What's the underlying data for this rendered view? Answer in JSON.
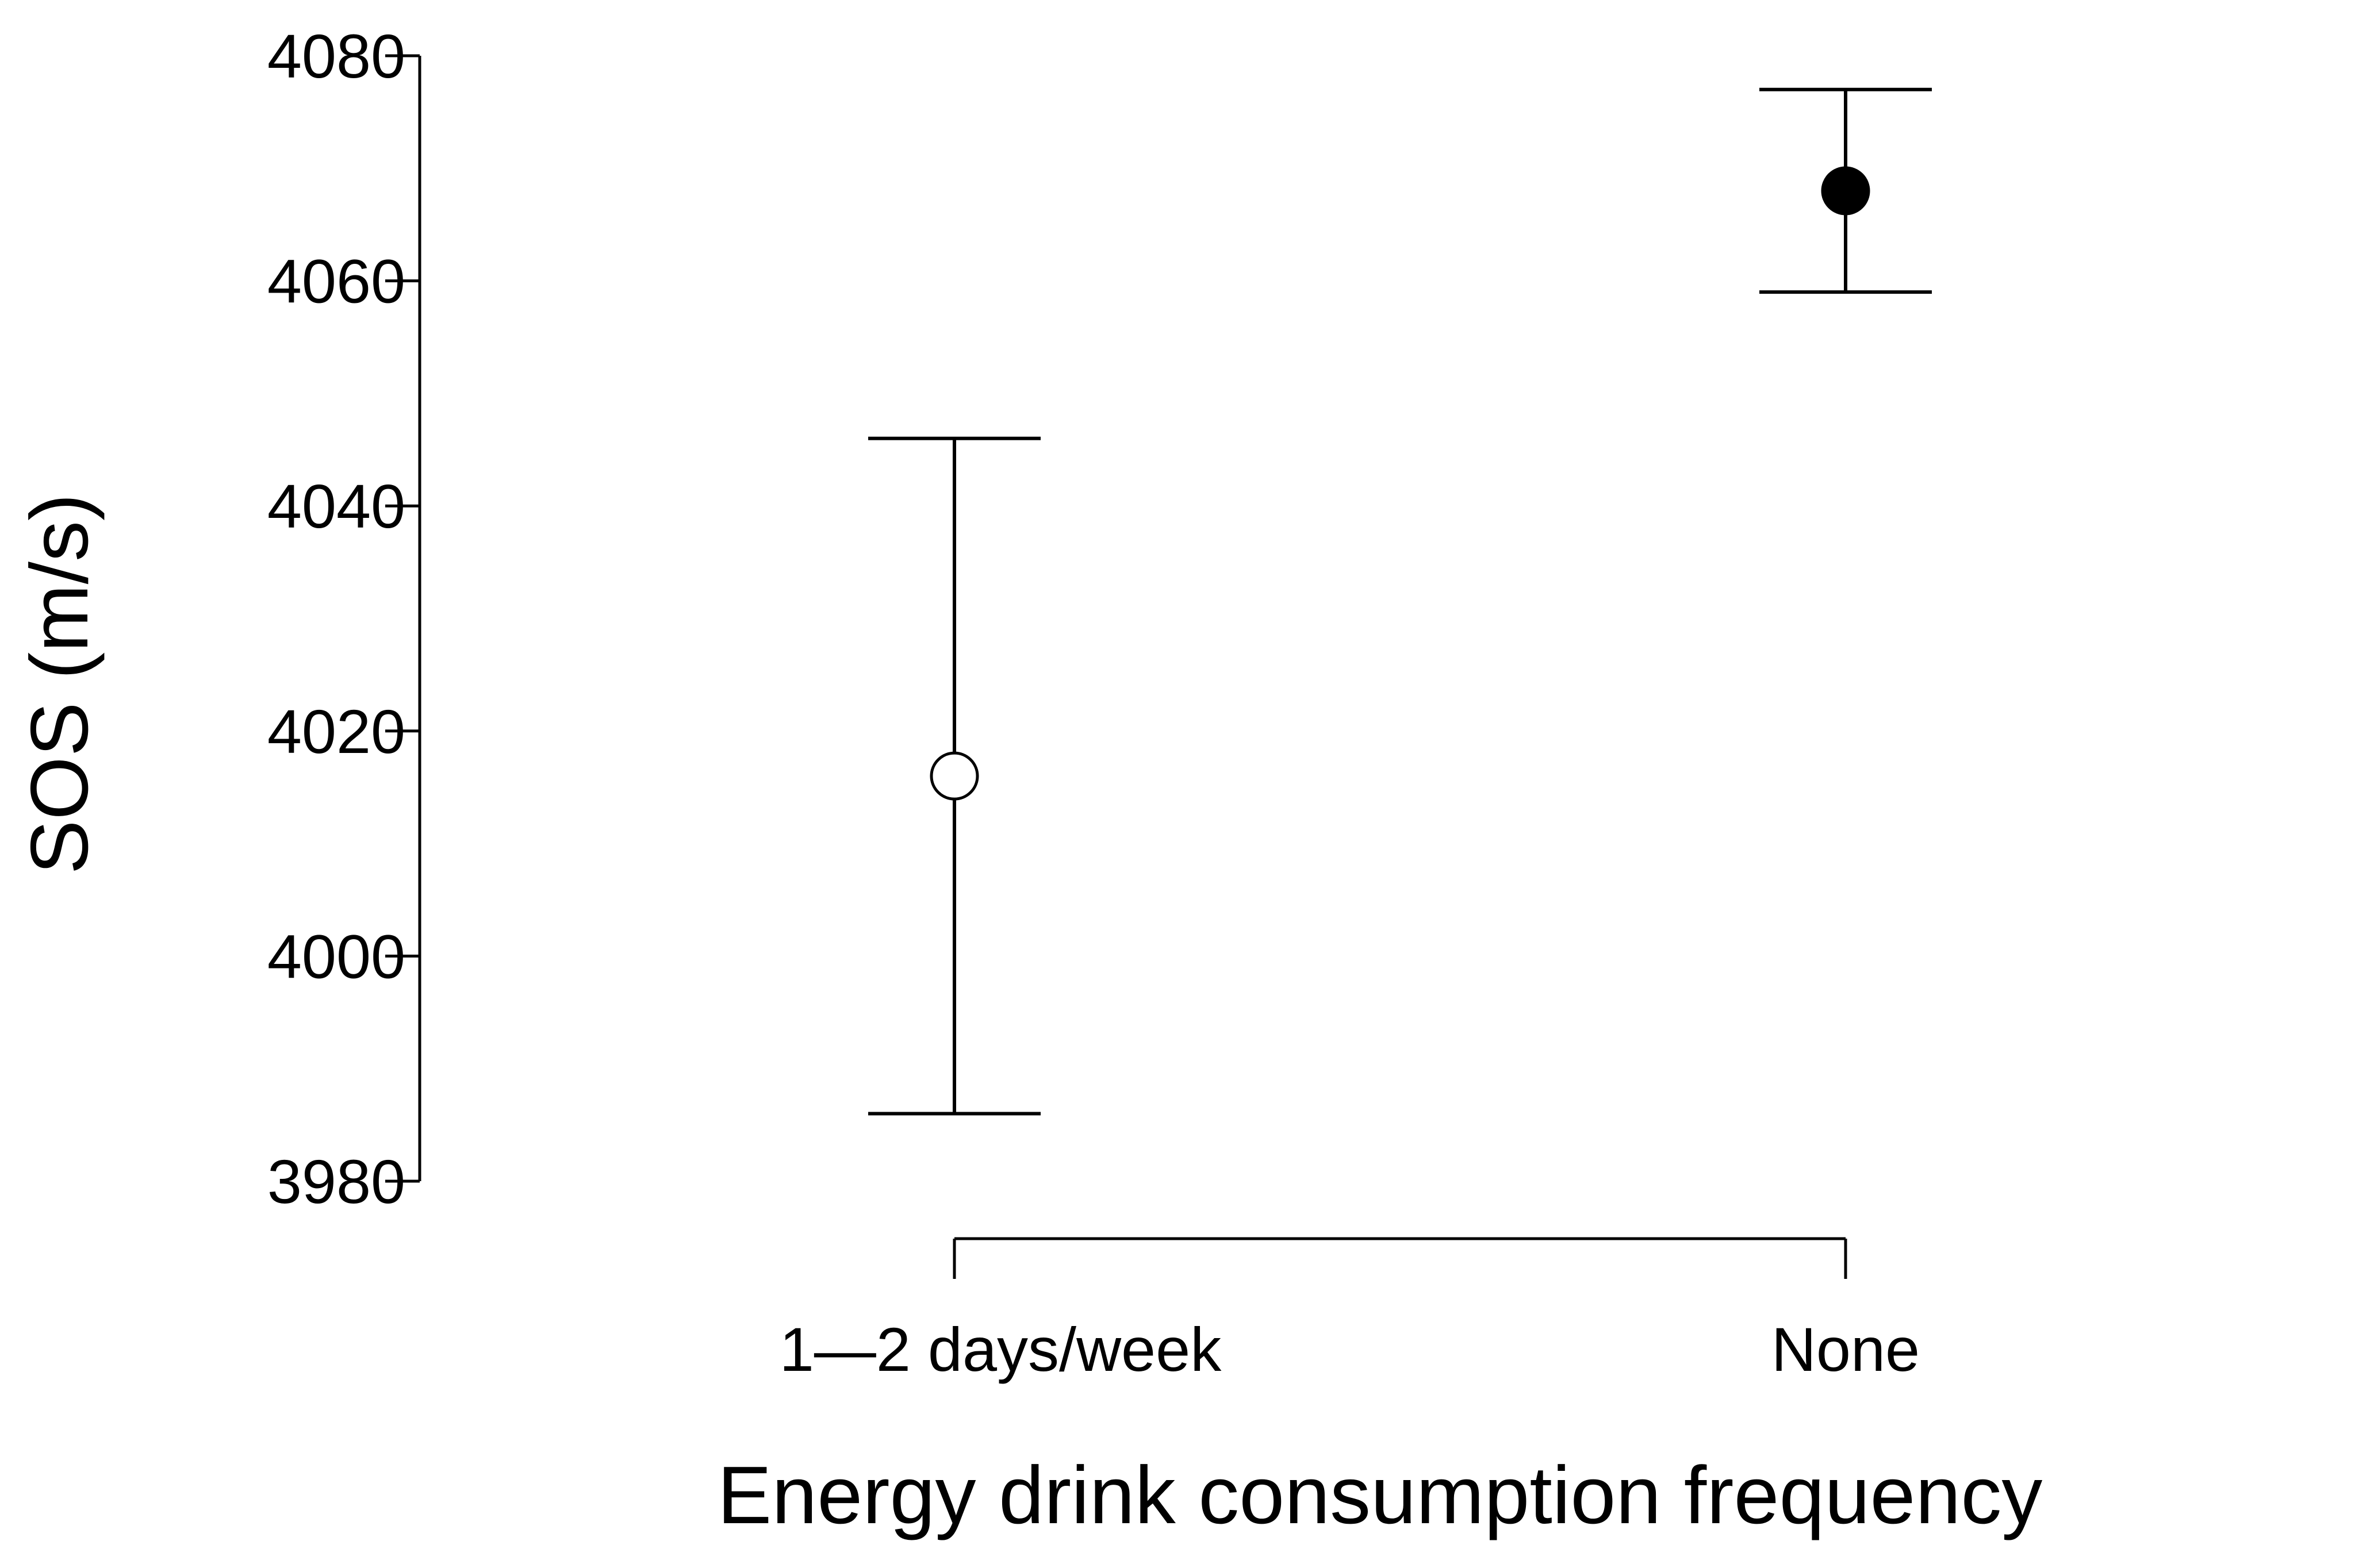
{
  "chart_data": {
    "type": "scatter",
    "title": "",
    "xlabel": "Energy drink consumption frequency",
    "ylabel": "SOS (m/s)",
    "categories": [
      "1—2 days/week",
      "None"
    ],
    "points": [
      {
        "category": "1—2 days/week",
        "mean": 4016,
        "lower": 3986,
        "upper": 4046,
        "marker": "open-circle"
      },
      {
        "category": "None",
        "mean": 4068,
        "lower": 4059,
        "upper": 4077,
        "marker": "filled-circle"
      }
    ],
    "y_ticks": [
      3980,
      4000,
      4020,
      4040,
      4060,
      4080
    ],
    "ylim": [
      3980,
      4080
    ],
    "grid": false,
    "legend": "none",
    "colors": {
      "marker_fill": "#000000",
      "line": "#000000",
      "background": "#ffffff"
    }
  }
}
